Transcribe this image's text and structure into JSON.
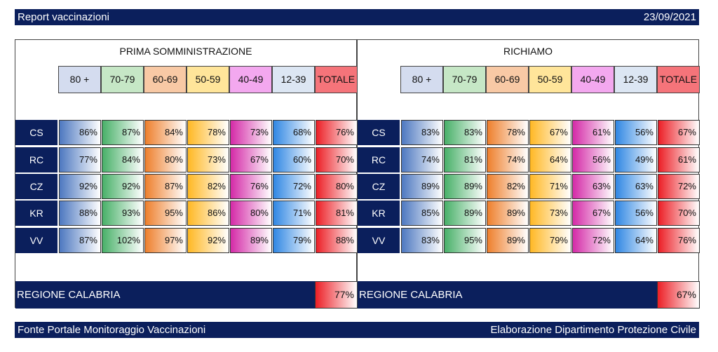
{
  "header": {
    "title": "Report vaccinazioni",
    "date": "23/09/2021"
  },
  "footer": {
    "source": "Fonte Portale Monitoraggio Vaccinazioni",
    "credit": "Elaborazione Dipartimento Protezione Civile"
  },
  "columns": [
    "80 +",
    "70-79",
    "60-69",
    "50-59",
    "40-49",
    "12-39",
    "TOTALE"
  ],
  "column_colors": [
    "#d4dcef",
    "#c6e7c6",
    "#f8c9a5",
    "#ffe59a",
    "#f3a8ef",
    "#dce6f3",
    "#f5747a"
  ],
  "cell_colors": [
    "#4d78c0",
    "#48b068",
    "#ee7f2c",
    "#ffb824",
    "#d42aa7",
    "#3087e3",
    "#ec1f26"
  ],
  "rows": [
    "CS",
    "RC",
    "CZ",
    "KR",
    "VV"
  ],
  "panels": [
    {
      "title": "PRIMA SOMMINISTRAZIONE",
      "values": [
        [
          "86%",
          "87%",
          "84%",
          "78%",
          "73%",
          "68%",
          "76%"
        ],
        [
          "77%",
          "84%",
          "80%",
          "73%",
          "67%",
          "60%",
          "70%"
        ],
        [
          "92%",
          "92%",
          "87%",
          "82%",
          "76%",
          "72%",
          "80%"
        ],
        [
          "88%",
          "93%",
          "95%",
          "86%",
          "80%",
          "71%",
          "81%"
        ],
        [
          "87%",
          "102%",
          "97%",
          "92%",
          "89%",
          "79%",
          "88%"
        ]
      ],
      "region_label": "REGIONE CALABRIA",
      "region_total": "77%"
    },
    {
      "title": "RICHIAMO",
      "values": [
        [
          "83%",
          "83%",
          "78%",
          "67%",
          "61%",
          "56%",
          "67%"
        ],
        [
          "74%",
          "81%",
          "74%",
          "64%",
          "56%",
          "49%",
          "61%"
        ],
        [
          "89%",
          "89%",
          "82%",
          "71%",
          "63%",
          "63%",
          "72%"
        ],
        [
          "85%",
          "89%",
          "89%",
          "73%",
          "67%",
          "56%",
          "70%"
        ],
        [
          "83%",
          "95%",
          "89%",
          "79%",
          "72%",
          "64%",
          "76%"
        ]
      ],
      "region_label": "REGIONE CALABRIA",
      "region_total": "67%"
    }
  ]
}
